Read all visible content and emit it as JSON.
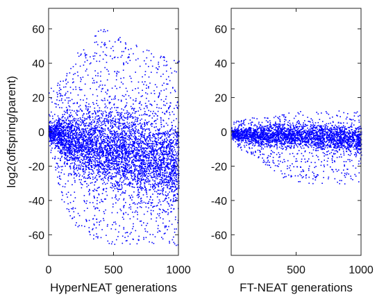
{
  "chart_data": [
    {
      "type": "scatter",
      "title": "",
      "xlabel": "HyperNEAT generations",
      "ylabel": "log2(offspring/parent)",
      "xlim": [
        0,
        1000
      ],
      "ylim": [
        -72,
        72
      ],
      "xticks": [
        0,
        500,
        1000
      ],
      "yticks": [
        -60,
        -40,
        -20,
        0,
        20,
        40,
        60
      ],
      "grid": false,
      "legend": "none",
      "marker_color": "#0000ff",
      "envelope": {
        "x": [
          0,
          50,
          100,
          150,
          200,
          300,
          400,
          500,
          600,
          700,
          800,
          900,
          1000
        ],
        "upper": [
          25,
          28,
          32,
          38,
          45,
          52,
          62,
          58,
          55,
          50,
          48,
          45,
          42
        ],
        "lower": [
          -10,
          -25,
          -40,
          -50,
          -55,
          -62,
          -65,
          -66,
          -66,
          -66,
          -66,
          -66,
          -66
        ],
        "dense_upper": [
          6,
          10,
          15,
          20,
          22,
          24,
          25,
          25,
          25,
          24,
          23,
          22,
          22
        ],
        "dense_lower": [
          -6,
          -12,
          -20,
          -28,
          -33,
          -38,
          -42,
          -45,
          -48,
          -50,
          -52,
          -54,
          -56
        ]
      }
    },
    {
      "type": "scatter",
      "title": "",
      "xlabel": "FT-NEAT generations",
      "ylabel": "",
      "xlim": [
        0,
        1000
      ],
      "ylim": [
        -72,
        72
      ],
      "xticks": [
        0,
        500,
        1000
      ],
      "yticks": [
        -60,
        -40,
        -20,
        0,
        20,
        40,
        60
      ],
      "grid": false,
      "legend": "none",
      "marker_color": "#0000ff",
      "envelope": {
        "x": [
          0,
          50,
          100,
          200,
          300,
          400,
          500,
          600,
          700,
          800,
          900,
          1000
        ],
        "upper": [
          6,
          7,
          8,
          9,
          10,
          11,
          12,
          13,
          14,
          13,
          12,
          12
        ],
        "lower": [
          -5,
          -9,
          -12,
          -15,
          -22,
          -28,
          -30,
          -30,
          -30,
          -30,
          -30,
          -30
        ],
        "dense_upper": [
          3,
          4,
          5,
          6,
          7,
          8,
          8,
          8,
          8,
          8,
          8,
          8
        ],
        "dense_lower": [
          -4,
          -6,
          -8,
          -10,
          -11,
          -12,
          -12,
          -13,
          -14,
          -15,
          -16,
          -17
        ]
      }
    }
  ]
}
